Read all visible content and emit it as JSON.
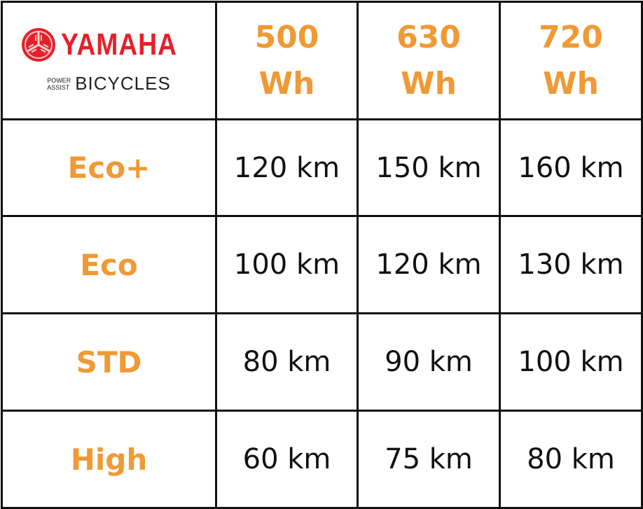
{
  "logo": {
    "brand": "YAMAHA",
    "tagline_top": "POWER",
    "tagline_bottom": "ASSIST",
    "product": "BICYCLES"
  },
  "table": {
    "columns": [
      {
        "value": "500",
        "unit": "Wh"
      },
      {
        "value": "630",
        "unit": "Wh"
      },
      {
        "value": "720",
        "unit": "Wh"
      }
    ],
    "rows": [
      {
        "label": "Eco+",
        "cells": [
          "120 km",
          "150 km",
          "160 km"
        ]
      },
      {
        "label": "Eco",
        "cells": [
          "100 km",
          "120 km",
          "130 km"
        ]
      },
      {
        "label": "STD",
        "cells": [
          "80 km",
          "90 km",
          "100 km"
        ]
      },
      {
        "label": "High",
        "cells": [
          "60 km",
          "75 km",
          "80 km"
        ]
      }
    ]
  }
}
